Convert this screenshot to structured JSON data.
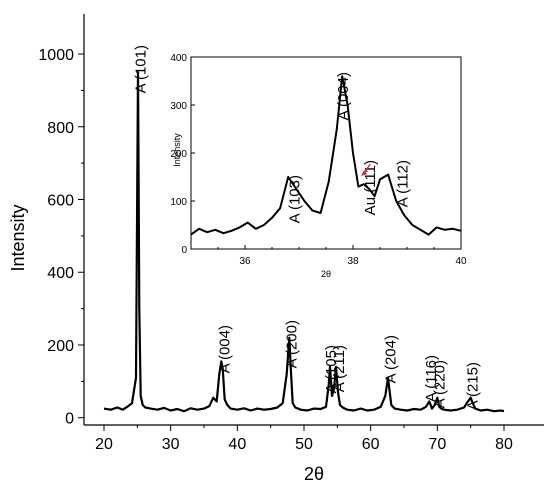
{
  "chart_data": [
    {
      "type": "line",
      "xlabel": "2θ",
      "ylabel": "Intensity",
      "xlim": [
        17,
        86
      ],
      "ylim": [
        -20,
        1110
      ],
      "xticks": [
        20,
        30,
        40,
        50,
        60,
        70,
        80
      ],
      "yticks": [
        0,
        200,
        400,
        600,
        800,
        1000
      ],
      "grid": false,
      "series": [
        {
          "color": "#000000",
          "x": [
            20,
            21,
            22,
            22.8,
            23.5,
            24.2,
            24.8,
            25.1,
            25.3,
            25.5,
            25.8,
            26.2,
            27,
            28,
            29,
            30,
            31,
            32,
            33,
            34,
            35,
            35.8,
            36.4,
            36.9,
            37.3,
            37.6,
            37.8,
            38.1,
            38.5,
            39,
            40,
            41,
            42,
            43,
            44,
            45,
            46,
            46.8,
            47.4,
            47.8,
            48,
            48.3,
            48.7,
            49.5,
            50.5,
            51.5,
            52.5,
            53.3,
            53.7,
            53.9,
            54.2,
            54.5,
            54.8,
            55.1,
            55.4,
            55.8,
            56.5,
            57.5,
            58.5,
            59.5,
            60.5,
            61.5,
            62.2,
            62.6,
            62.8,
            63.1,
            63.6,
            64.5,
            65.5,
            66.5,
            67.5,
            68.3,
            68.8,
            69.2,
            69.6,
            70,
            70.3,
            70.6,
            71,
            72,
            73,
            74,
            74.6,
            75,
            75.3,
            75.7,
            76.5,
            77.5,
            78.5,
            79.5,
            80
          ],
          "y": [
            25,
            22,
            28,
            22,
            30,
            40,
            110,
            950,
            300,
            60,
            35,
            28,
            25,
            22,
            27,
            20,
            24,
            18,
            26,
            22,
            25,
            32,
            55,
            45,
            120,
            155,
            135,
            50,
            35,
            25,
            22,
            26,
            20,
            25,
            22,
            24,
            28,
            40,
            120,
            220,
            140,
            40,
            28,
            22,
            20,
            25,
            24,
            30,
            90,
            140,
            60,
            80,
            140,
            70,
            35,
            28,
            22,
            20,
            25,
            20,
            22,
            30,
            60,
            110,
            80,
            35,
            25,
            22,
            20,
            24,
            22,
            30,
            45,
            25,
            35,
            55,
            30,
            25,
            22,
            20,
            22,
            28,
            45,
            55,
            40,
            25,
            20,
            22,
            18,
            20,
            18
          ]
        }
      ],
      "annotations": [
        {
          "text": "A (101)",
          "x": 25.3
        },
        {
          "text": "A (004)",
          "x": 37.9
        },
        {
          "text": "A (200)",
          "x": 48.0
        },
        {
          "text": "A (105)",
          "x": 53.9
        },
        {
          "text": "A (211)",
          "x": 55.1
        },
        {
          "text": "A (204)",
          "x": 62.8
        },
        {
          "text": "A (116)",
          "x": 68.9
        },
        {
          "text": "A (220)",
          "x": 70.2
        },
        {
          "text": "A (215)",
          "x": 75.1
        }
      ]
    },
    {
      "type": "line",
      "xlabel": "2θ",
      "ylabel": "Intensity",
      "xlim": [
        35,
        40
      ],
      "ylim": [
        0,
        400
      ],
      "xticks": [
        36,
        38,
        40
      ],
      "yticks": [
        0,
        100,
        200,
        300,
        400
      ],
      "grid": false,
      "series": [
        {
          "color": "#000000",
          "x": [
            35,
            35.15,
            35.3,
            35.45,
            35.6,
            35.75,
            35.9,
            36.05,
            36.2,
            36.35,
            36.5,
            36.65,
            36.8,
            36.95,
            37.1,
            37.25,
            37.4,
            37.55,
            37.7,
            37.8,
            37.9,
            38.0,
            38.1,
            38.2,
            38.3,
            38.4,
            38.5,
            38.65,
            38.8,
            38.95,
            39.1,
            39.25,
            39.4,
            39.55,
            39.7,
            39.85,
            40
          ],
          "y": [
            30,
            42,
            35,
            40,
            33,
            38,
            45,
            55,
            42,
            50,
            65,
            85,
            150,
            125,
            100,
            80,
            75,
            140,
            250,
            360,
            300,
            200,
            130,
            135,
            125,
            110,
            145,
            155,
            100,
            70,
            50,
            40,
            30,
            45,
            40,
            42,
            38
          ]
        }
      ],
      "annotations": [
        {
          "text": "A (103)",
          "x": 36.9
        },
        {
          "text": "A (004)",
          "x": 37.8
        },
        {
          "text": "Au (111)",
          "x": 38.3,
          "color": "#dd1f26"
        },
        {
          "text": "A (112)",
          "x": 38.9
        }
      ]
    }
  ]
}
